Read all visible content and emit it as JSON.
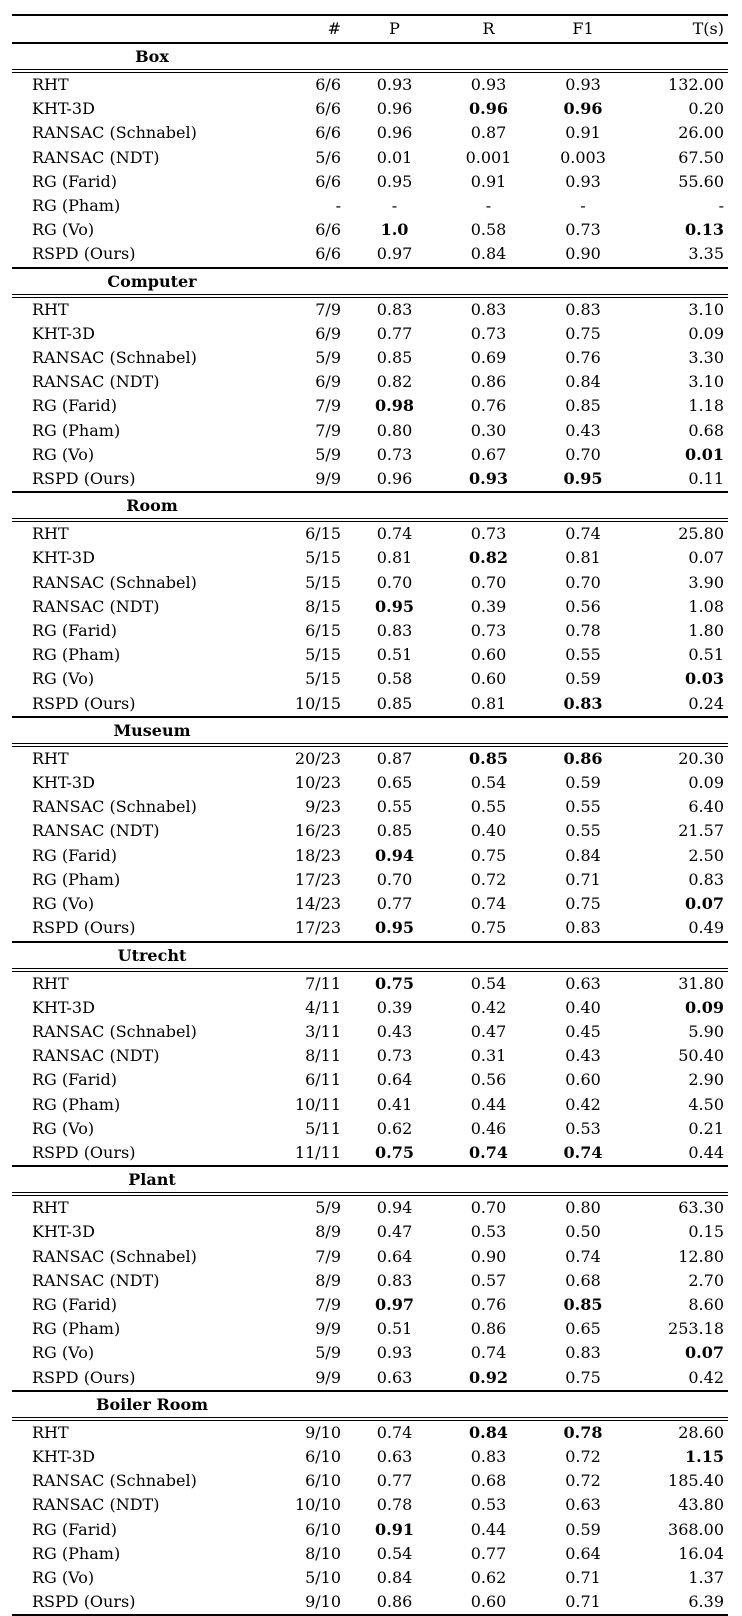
{
  "table": {
    "columns": [
      "",
      "#",
      "P",
      "R",
      "F1",
      "T(s)"
    ],
    "sections": [
      {
        "name": "Box",
        "rows": [
          {
            "method": "RHT",
            "cells": [
              "6/6",
              "0.93",
              "0.93",
              "0.93",
              "132.00"
            ],
            "bold": []
          },
          {
            "method": "KHT-3D",
            "cells": [
              "6/6",
              "0.96",
              "0.96",
              "0.96",
              "0.20"
            ],
            "bold": [
              2,
              3
            ]
          },
          {
            "method": "RANSAC (Schnabel)",
            "cells": [
              "6/6",
              "0.96",
              "0.87",
              "0.91",
              "26.00"
            ],
            "bold": []
          },
          {
            "method": "RANSAC (NDT)",
            "cells": [
              "5/6",
              "0.01",
              "0.001",
              "0.003",
              "67.50"
            ],
            "bold": []
          },
          {
            "method": "RG (Farid)",
            "cells": [
              "6/6",
              "0.95",
              "0.91",
              "0.93",
              "55.60"
            ],
            "bold": []
          },
          {
            "method": "RG (Pham)",
            "cells": [
              "-",
              "-",
              "-",
              "-",
              "-"
            ],
            "bold": []
          },
          {
            "method": "RG (Vo)",
            "cells": [
              "6/6",
              "1.0",
              "0.58",
              "0.73",
              "0.13"
            ],
            "bold": [
              1,
              4
            ]
          },
          {
            "method": "RSPD (Ours)",
            "cells": [
              "6/6",
              "0.97",
              "0.84",
              "0.90",
              "3.35"
            ],
            "bold": []
          }
        ]
      },
      {
        "name": "Computer",
        "rows": [
          {
            "method": "RHT",
            "cells": [
              "7/9",
              "0.83",
              "0.83",
              "0.83",
              "3.10"
            ],
            "bold": []
          },
          {
            "method": "KHT-3D",
            "cells": [
              "6/9",
              "0.77",
              "0.73",
              "0.75",
              "0.09"
            ],
            "bold": []
          },
          {
            "method": "RANSAC (Schnabel)",
            "cells": [
              "5/9",
              "0.85",
              "0.69",
              "0.76",
              "3.30"
            ],
            "bold": []
          },
          {
            "method": "RANSAC (NDT)",
            "cells": [
              "6/9",
              "0.82",
              "0.86",
              "0.84",
              "3.10"
            ],
            "bold": []
          },
          {
            "method": "RG (Farid)",
            "cells": [
              "7/9",
              "0.98",
              "0.76",
              "0.85",
              "1.18"
            ],
            "bold": [
              1
            ]
          },
          {
            "method": "RG (Pham)",
            "cells": [
              "7/9",
              "0.80",
              "0.30",
              "0.43",
              "0.68"
            ],
            "bold": []
          },
          {
            "method": "RG (Vo)",
            "cells": [
              "5/9",
              "0.73",
              "0.67",
              "0.70",
              "0.01"
            ],
            "bold": [
              4
            ]
          },
          {
            "method": "RSPD (Ours)",
            "cells": [
              "9/9",
              "0.96",
              "0.93",
              "0.95",
              "0.11"
            ],
            "bold": [
              2,
              3
            ]
          }
        ]
      },
      {
        "name": "Room",
        "rows": [
          {
            "method": "RHT",
            "cells": [
              "6/15",
              "0.74",
              "0.73",
              "0.74",
              "25.80"
            ],
            "bold": []
          },
          {
            "method": "KHT-3D",
            "cells": [
              "5/15",
              "0.81",
              "0.82",
              "0.81",
              "0.07"
            ],
            "bold": [
              2
            ]
          },
          {
            "method": "RANSAC (Schnabel)",
            "cells": [
              "5/15",
              "0.70",
              "0.70",
              "0.70",
              "3.90"
            ],
            "bold": []
          },
          {
            "method": "RANSAC (NDT)",
            "cells": [
              "8/15",
              "0.95",
              "0.39",
              "0.56",
              "1.08"
            ],
            "bold": [
              1
            ]
          },
          {
            "method": "RG (Farid)",
            "cells": [
              "6/15",
              "0.83",
              "0.73",
              "0.78",
              "1.80"
            ],
            "bold": []
          },
          {
            "method": "RG (Pham)",
            "cells": [
              "5/15",
              "0.51",
              "0.60",
              "0.55",
              "0.51"
            ],
            "bold": []
          },
          {
            "method": "RG (Vo)",
            "cells": [
              "5/15",
              "0.58",
              "0.60",
              "0.59",
              "0.03"
            ],
            "bold": [
              4
            ]
          },
          {
            "method": "RSPD (Ours)",
            "cells": [
              "10/15",
              "0.85",
              "0.81",
              "0.83",
              "0.24"
            ],
            "bold": [
              3
            ]
          }
        ]
      },
      {
        "name": "Museum",
        "rows": [
          {
            "method": "RHT",
            "cells": [
              "20/23",
              "0.87",
              "0.85",
              "0.86",
              "20.30"
            ],
            "bold": [
              2,
              3
            ]
          },
          {
            "method": "KHT-3D",
            "cells": [
              "10/23",
              "0.65",
              "0.54",
              "0.59",
              "0.09"
            ],
            "bold": []
          },
          {
            "method": "RANSAC (Schnabel)",
            "cells": [
              "9/23",
              "0.55",
              "0.55",
              "0.55",
              "6.40"
            ],
            "bold": []
          },
          {
            "method": "RANSAC (NDT)",
            "cells": [
              "16/23",
              "0.85",
              "0.40",
              "0.55",
              "21.57"
            ],
            "bold": []
          },
          {
            "method": "RG (Farid)",
            "cells": [
              "18/23",
              "0.94",
              "0.75",
              "0.84",
              "2.50"
            ],
            "bold": [
              1
            ]
          },
          {
            "method": "RG (Pham)",
            "cells": [
              "17/23",
              "0.70",
              "0.72",
              "0.71",
              "0.83"
            ],
            "bold": []
          },
          {
            "method": "RG (Vo)",
            "cells": [
              "14/23",
              "0.77",
              "0.74",
              "0.75",
              "0.07"
            ],
            "bold": [
              4
            ]
          },
          {
            "method": "RSPD (Ours)",
            "cells": [
              "17/23",
              "0.95",
              "0.75",
              "0.83",
              "0.49"
            ],
            "bold": [
              1
            ]
          }
        ]
      },
      {
        "name": "Utrecht",
        "rows": [
          {
            "method": "RHT",
            "cells": [
              "7/11",
              "0.75",
              "0.54",
              "0.63",
              "31.80"
            ],
            "bold": [
              1
            ]
          },
          {
            "method": "KHT-3D",
            "cells": [
              "4/11",
              "0.39",
              "0.42",
              "0.40",
              "0.09"
            ],
            "bold": [
              4
            ]
          },
          {
            "method": "RANSAC (Schnabel)",
            "cells": [
              "3/11",
              "0.43",
              "0.47",
              "0.45",
              "5.90"
            ],
            "bold": []
          },
          {
            "method": "RANSAC (NDT)",
            "cells": [
              "8/11",
              "0.73",
              "0.31",
              "0.43",
              "50.40"
            ],
            "bold": []
          },
          {
            "method": "RG (Farid)",
            "cells": [
              "6/11",
              "0.64",
              "0.56",
              "0.60",
              "2.90"
            ],
            "bold": []
          },
          {
            "method": "RG (Pham)",
            "cells": [
              "10/11",
              "0.41",
              "0.44",
              "0.42",
              "4.50"
            ],
            "bold": []
          },
          {
            "method": "RG (Vo)",
            "cells": [
              "5/11",
              "0.62",
              "0.46",
              "0.53",
              "0.21"
            ],
            "bold": []
          },
          {
            "method": "RSPD (Ours)",
            "cells": [
              "11/11",
              "0.75",
              "0.74",
              "0.74",
              "0.44"
            ],
            "bold": [
              1,
              2,
              3
            ]
          }
        ]
      },
      {
        "name": "Plant",
        "rows": [
          {
            "method": "RHT",
            "cells": [
              "5/9",
              "0.94",
              "0.70",
              "0.80",
              "63.30"
            ],
            "bold": []
          },
          {
            "method": "KHT-3D",
            "cells": [
              "8/9",
              "0.47",
              "0.53",
              "0.50",
              "0.15"
            ],
            "bold": []
          },
          {
            "method": "RANSAC (Schnabel)",
            "cells": [
              "7/9",
              "0.64",
              "0.90",
              "0.74",
              "12.80"
            ],
            "bold": []
          },
          {
            "method": "RANSAC (NDT)",
            "cells": [
              "8/9",
              "0.83",
              "0.57",
              "0.68",
              "2.70"
            ],
            "bold": []
          },
          {
            "method": "RG (Farid)",
            "cells": [
              "7/9",
              "0.97",
              "0.76",
              "0.85",
              "8.60"
            ],
            "bold": [
              1,
              3
            ]
          },
          {
            "method": "RG (Pham)",
            "cells": [
              "9/9",
              "0.51",
              "0.86",
              "0.65",
              "253.18"
            ],
            "bold": []
          },
          {
            "method": "RG (Vo)",
            "cells": [
              "5/9",
              "0.93",
              "0.74",
              "0.83",
              "0.07"
            ],
            "bold": [
              4
            ]
          },
          {
            "method": "RSPD (Ours)",
            "cells": [
              "9/9",
              "0.63",
              "0.92",
              "0.75",
              "0.42"
            ],
            "bold": [
              2
            ]
          }
        ]
      },
      {
        "name": "Boiler Room",
        "rows": [
          {
            "method": "RHT",
            "cells": [
              "9/10",
              "0.74",
              "0.84",
              "0.78",
              "28.60"
            ],
            "bold": [
              2,
              3
            ]
          },
          {
            "method": "KHT-3D",
            "cells": [
              "6/10",
              "0.63",
              "0.83",
              "0.72",
              "1.15"
            ],
            "bold": [
              4
            ]
          },
          {
            "method": "RANSAC (Schnabel)",
            "cells": [
              "6/10",
              "0.77",
              "0.68",
              "0.72",
              "185.40"
            ],
            "bold": []
          },
          {
            "method": "RANSAC (NDT)",
            "cells": [
              "10/10",
              "0.78",
              "0.53",
              "0.63",
              "43.80"
            ],
            "bold": []
          },
          {
            "method": "RG (Farid)",
            "cells": [
              "6/10",
              "0.91",
              "0.44",
              "0.59",
              "368.00"
            ],
            "bold": [
              1
            ]
          },
          {
            "method": "RG (Pham)",
            "cells": [
              "8/10",
              "0.54",
              "0.77",
              "0.64",
              "16.04"
            ],
            "bold": []
          },
          {
            "method": "RG (Vo)",
            "cells": [
              "5/10",
              "0.84",
              "0.62",
              "0.71",
              "1.37"
            ],
            "bold": []
          },
          {
            "method": "RSPD (Ours)",
            "cells": [
              "9/10",
              "0.86",
              "0.60",
              "0.71",
              "6.39"
            ],
            "bold": []
          }
        ]
      }
    ]
  }
}
